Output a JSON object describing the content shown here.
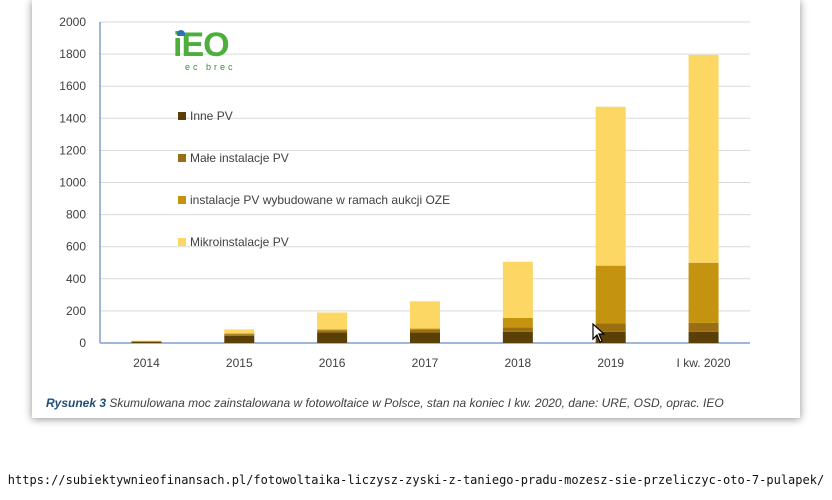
{
  "chart_data": {
    "type": "bar",
    "stacked": true,
    "categories": [
      "2014",
      "2015",
      "2016",
      "2017",
      "2018",
      "2019",
      "I kw. 2020"
    ],
    "series": [
      {
        "name": "Inne PV",
        "color": "#5a3f06",
        "values": [
          8,
          45,
          65,
          65,
          70,
          70,
          70
        ]
      },
      {
        "name": "Małe instalacje PV",
        "color": "#9a6f12",
        "values": [
          2,
          10,
          15,
          20,
          28,
          52,
          55
        ]
      },
      {
        "name": "instalacje PV wybudowane w ramach aukcji OZE",
        "color": "#c49410",
        "values": [
          2,
          5,
          5,
          5,
          58,
          360,
          375
        ]
      },
      {
        "name": "Mikroinstalacje PV",
        "color": "#fcd764",
        "values": [
          3,
          25,
          105,
          170,
          350,
          990,
          1295
        ]
      }
    ],
    "ylim": [
      0,
      2000
    ],
    "yticks": [
      "0",
      "200",
      "400",
      "600",
      "800",
      "1000",
      "1200",
      "1400",
      "1600",
      "1800",
      "2000"
    ],
    "grid": true,
    "legend_position": "top-left"
  },
  "logo": {
    "text": "iEO",
    "sub": "ec brec"
  },
  "caption": {
    "label": "Rysunek 3",
    "text": " Skumulowana moc zainstalowana w fotowoltaice w Polsce, stan na koniec I kw. 2020, dane: URE, OSD, oprac. IEO"
  },
  "source_url": "https://subiektywnieofinansach.pl/fotowoltaika-liczysz-zyski-z-taniego-pradu-mozesz-sie-przeliczyc-oto-7-pulapek/"
}
